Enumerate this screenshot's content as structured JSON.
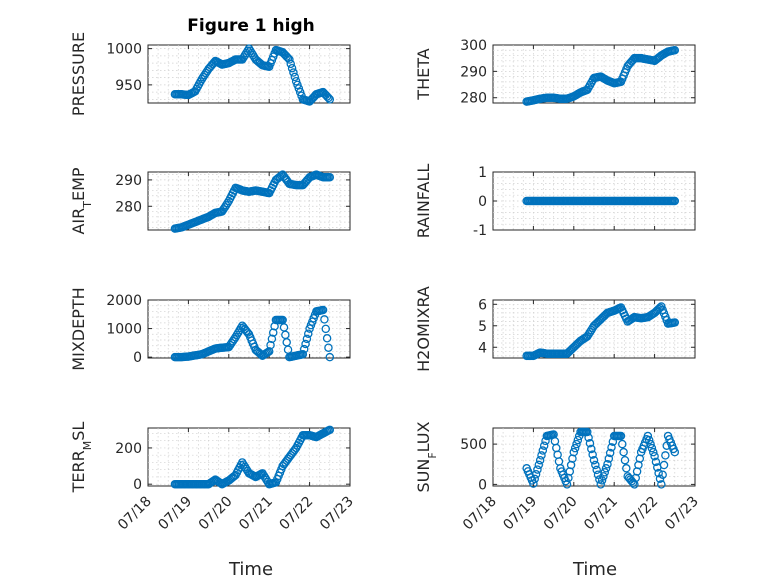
{
  "figure_title": "Figure 1 high",
  "colors": {
    "marker": "#0072BD",
    "axes": "#262626",
    "grid": "#d0d0d0"
  },
  "chart_data": [
    {
      "type": "scatter",
      "ylabel": "PRESSURE",
      "title": "Figure 1 high",
      "ylim": [
        925,
        1005
      ],
      "yticks": [
        950,
        1000
      ],
      "xlim": [
        "07/18",
        "07/23"
      ],
      "grid": true,
      "x": [
        "07/18 16:00",
        "07/18 20:00",
        "07/19 00:00",
        "07/19 04:00",
        "07/19 08:00",
        "07/19 12:00",
        "07/19 16:00",
        "07/19 20:00",
        "07/20 00:00",
        "07/20 04:00",
        "07/20 08:00",
        "07/20 12:00",
        "07/20 16:00",
        "07/20 20:00",
        "07/21 00:00",
        "07/21 04:00",
        "07/21 08:00",
        "07/21 12:00",
        "07/21 16:00",
        "07/21 20:00",
        "07/22 00:00",
        "07/22 04:00",
        "07/22 08:00",
        "07/22 12:00"
      ],
      "y": [
        937,
        937,
        936,
        941,
        958,
        972,
        983,
        978,
        980,
        985,
        985,
        1000,
        985,
        977,
        975,
        998,
        995,
        985,
        955,
        930,
        927,
        937,
        940,
        930
      ]
    },
    {
      "type": "scatter",
      "ylabel": "THETA",
      "ylim": [
        278,
        300
      ],
      "yticks": [
        280,
        290,
        300
      ],
      "xlim": [
        "07/18",
        "07/23"
      ],
      "grid": true,
      "x": [
        "07/18 20:00",
        "07/19 00:00",
        "07/19 04:00",
        "07/19 08:00",
        "07/19 12:00",
        "07/19 16:00",
        "07/19 20:00",
        "07/20 00:00",
        "07/20 04:00",
        "07/20 08:00",
        "07/20 12:00",
        "07/20 16:00",
        "07/20 20:00",
        "07/21 00:00",
        "07/21 04:00",
        "07/21 08:00",
        "07/21 12:00",
        "07/21 16:00",
        "07/21 20:00",
        "07/22 00:00",
        "07/22 04:00",
        "07/22 08:00",
        "07/22 12:00"
      ],
      "y": [
        278.5,
        279,
        279.6,
        280,
        280,
        279.6,
        279.6,
        280.5,
        282,
        283,
        287.5,
        288,
        286.5,
        285.5,
        286,
        292,
        295,
        295,
        294.5,
        294,
        296,
        297.5,
        298
      ]
    },
    {
      "type": "scatter",
      "ylabel": "AIR_TEMP",
      "ylim": [
        271,
        293
      ],
      "yticks": [
        280,
        290
      ],
      "xlim": [
        "07/18",
        "07/23"
      ],
      "grid": true,
      "x": [
        "07/18 16:00",
        "07/18 20:00",
        "07/19 00:00",
        "07/19 04:00",
        "07/19 08:00",
        "07/19 12:00",
        "07/19 16:00",
        "07/19 20:00",
        "07/20 00:00",
        "07/20 04:00",
        "07/20 08:00",
        "07/20 12:00",
        "07/20 16:00",
        "07/20 20:00",
        "07/21 00:00",
        "07/21 04:00",
        "07/21 08:00",
        "07/21 12:00",
        "07/21 16:00",
        "07/21 20:00",
        "07/22 00:00",
        "07/22 04:00",
        "07/22 08:00",
        "07/22 12:00"
      ],
      "y": [
        271.5,
        272,
        273,
        274,
        275,
        276,
        277.5,
        278,
        282,
        287,
        286,
        285.5,
        286,
        285.5,
        285,
        290,
        292,
        288.5,
        288,
        288,
        291,
        292,
        291,
        291
      ]
    },
    {
      "type": "scatter",
      "ylabel": "RAINFALL",
      "ylim": [
        -1,
        1
      ],
      "yticks": [
        -1,
        0,
        1
      ],
      "xlim": [
        "07/18",
        "07/23"
      ],
      "grid": true,
      "x": [
        "07/18 20:00",
        "07/19 00:00",
        "07/19 04:00",
        "07/19 08:00",
        "07/19 12:00",
        "07/19 16:00",
        "07/19 20:00",
        "07/20 00:00",
        "07/20 04:00",
        "07/20 08:00",
        "07/20 12:00",
        "07/20 16:00",
        "07/20 20:00",
        "07/21 00:00",
        "07/21 04:00",
        "07/21 08:00",
        "07/21 12:00",
        "07/21 16:00",
        "07/21 20:00",
        "07/22 00:00",
        "07/22 04:00",
        "07/22 08:00",
        "07/22 12:00"
      ],
      "y": [
        0,
        0,
        0,
        0,
        0,
        0,
        0,
        0,
        0,
        0,
        0,
        0,
        0,
        0,
        0,
        0,
        0,
        0,
        0,
        0,
        0,
        0,
        0
      ]
    },
    {
      "type": "scatter",
      "ylabel": "MIXDEPTH",
      "ylim": [
        -30,
        2000
      ],
      "yticks": [
        0,
        1000,
        2000
      ],
      "xlim": [
        "07/18",
        "07/23"
      ],
      "grid": true,
      "x": [
        "07/18 16:00",
        "07/18 20:00",
        "07/19 00:00",
        "07/19 04:00",
        "07/19 08:00",
        "07/19 12:00",
        "07/19 16:00",
        "07/19 20:00",
        "07/20 00:00",
        "07/20 04:00",
        "07/20 08:00",
        "07/20 12:00",
        "07/20 16:00",
        "07/20 20:00",
        "07/21 00:00",
        "07/21 04:00",
        "07/21 08:00",
        "07/21 12:00",
        "07/21 16:00",
        "07/21 20:00",
        "07/22 00:00",
        "07/22 04:00",
        "07/22 08:00",
        "07/22 12:00"
      ],
      "y": [
        0,
        0,
        20,
        60,
        100,
        200,
        300,
        330,
        350,
        700,
        1100,
        800,
        250,
        50,
        200,
        1300,
        1300,
        0,
        50,
        100,
        1000,
        1600,
        1650,
        0
      ]
    },
    {
      "type": "scatter",
      "ylabel": "H2OMIXRA",
      "ylim": [
        3.5,
        6.2
      ],
      "yticks": [
        4,
        5,
        6
      ],
      "xlim": [
        "07/18",
        "07/23"
      ],
      "grid": true,
      "x": [
        "07/18 20:00",
        "07/19 00:00",
        "07/19 04:00",
        "07/19 08:00",
        "07/19 12:00",
        "07/19 16:00",
        "07/19 20:00",
        "07/20 00:00",
        "07/20 04:00",
        "07/20 08:00",
        "07/20 12:00",
        "07/20 16:00",
        "07/20 20:00",
        "07/21 00:00",
        "07/21 04:00",
        "07/21 08:00",
        "07/21 12:00",
        "07/21 16:00",
        "07/21 20:00",
        "07/22 00:00",
        "07/22 04:00",
        "07/22 08:00",
        "07/22 12:00"
      ],
      "y": [
        3.6,
        3.6,
        3.75,
        3.7,
        3.7,
        3.7,
        3.7,
        4.0,
        4.3,
        4.5,
        5.0,
        5.3,
        5.6,
        5.7,
        5.85,
        5.2,
        5.4,
        5.35,
        5.4,
        5.6,
        5.9,
        5.1,
        5.15
      ]
    },
    {
      "type": "scatter",
      "ylabel": "TERR_MSL",
      "ylim": [
        -10,
        310
      ],
      "yticks": [
        0,
        200
      ],
      "xlim": [
        "07/18",
        "07/23"
      ],
      "grid": true,
      "x": [
        "07/18 16:00",
        "07/18 20:00",
        "07/19 00:00",
        "07/19 04:00",
        "07/19 08:00",
        "07/19 12:00",
        "07/19 16:00",
        "07/19 20:00",
        "07/20 00:00",
        "07/20 04:00",
        "07/20 08:00",
        "07/20 12:00",
        "07/20 16:00",
        "07/20 20:00",
        "07/21 00:00",
        "07/21 04:00",
        "07/21 08:00",
        "07/21 12:00",
        "07/21 16:00",
        "07/21 20:00",
        "07/22 00:00",
        "07/22 04:00",
        "07/22 08:00",
        "07/22 12:00"
      ],
      "y": [
        0,
        0,
        0,
        0,
        0,
        0,
        25,
        0,
        20,
        50,
        120,
        60,
        40,
        60,
        0,
        10,
        100,
        150,
        200,
        270,
        270,
        260,
        280,
        300
      ]
    },
    {
      "type": "scatter",
      "ylabel": "SUN_FLUX",
      "ylim": [
        -20,
        700
      ],
      "yticks": [
        0,
        500
      ],
      "xlim": [
        "07/18",
        "07/23"
      ],
      "grid": true,
      "x": [
        "07/18 20:00",
        "07/19 00:00",
        "07/19 04:00",
        "07/19 08:00",
        "07/19 12:00",
        "07/19 16:00",
        "07/19 20:00",
        "07/20 00:00",
        "07/20 04:00",
        "07/20 08:00",
        "07/20 12:00",
        "07/20 16:00",
        "07/20 20:00",
        "07/21 00:00",
        "07/21 04:00",
        "07/21 08:00",
        "07/21 12:00",
        "07/21 16:00",
        "07/21 20:00",
        "07/22 00:00",
        "07/22 04:00",
        "07/22 08:00",
        "07/22 12:00"
      ],
      "y": [
        200,
        10,
        300,
        600,
        620,
        200,
        0,
        400,
        650,
        650,
        300,
        0,
        250,
        600,
        600,
        100,
        0,
        400,
        600,
        350,
        0,
        600,
        400
      ]
    }
  ],
  "xtick_labels": [
    "07/18",
    "07/19",
    "07/20",
    "07/21",
    "07/22",
    "07/23"
  ],
  "xlabels": [
    "Time",
    "Time"
  ]
}
